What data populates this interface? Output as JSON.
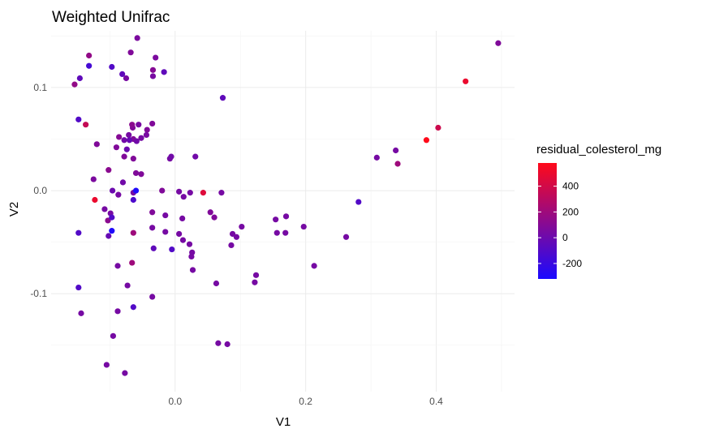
{
  "chart_data": {
    "type": "scatter",
    "title": "Weighted Unifrac",
    "xlabel": "V1",
    "ylabel": "V2",
    "xlim": [
      -0.19,
      0.52
    ],
    "ylim": [
      -0.195,
      0.155
    ],
    "x_ticks": [
      0.0,
      0.2,
      0.4
    ],
    "x_tick_labels": [
      "0.0",
      "0.2",
      "0.4"
    ],
    "y_ticks": [
      -0.1,
      0.0,
      0.1
    ],
    "y_tick_labels": [
      "-0.1",
      "0.0",
      "0.1"
    ],
    "grid": true,
    "legend": {
      "title": "residual_colesterol_mg",
      "placement": "right",
      "type": "colorbar",
      "range": [
        -320,
        580
      ],
      "ticks": [
        -200,
        0,
        200,
        400
      ],
      "tick_labels": [
        "-200",
        "0",
        "200",
        "400"
      ],
      "color_low": "#1a0aff",
      "color_high": "#ff0a1a"
    },
    "points": [
      {
        "x": -0.058,
        "y": 0.148,
        "c": 60
      },
      {
        "x": -0.132,
        "y": 0.131,
        "c": 150
      },
      {
        "x": -0.068,
        "y": 0.134,
        "c": 80
      },
      {
        "x": -0.03,
        "y": 0.129,
        "c": 60
      },
      {
        "x": -0.132,
        "y": 0.121,
        "c": -150
      },
      {
        "x": -0.097,
        "y": 0.12,
        "c": -100
      },
      {
        "x": -0.146,
        "y": 0.109,
        "c": -50
      },
      {
        "x": -0.154,
        "y": 0.103,
        "c": 150
      },
      {
        "x": -0.081,
        "y": 0.113,
        "c": -50
      },
      {
        "x": -0.075,
        "y": 0.109,
        "c": 50
      },
      {
        "x": -0.034,
        "y": 0.117,
        "c": 100
      },
      {
        "x": -0.034,
        "y": 0.111,
        "c": 50
      },
      {
        "x": -0.017,
        "y": 0.115,
        "c": -50
      },
      {
        "x": 0.073,
        "y": 0.09,
        "c": -50
      },
      {
        "x": -0.148,
        "y": 0.069,
        "c": -100
      },
      {
        "x": -0.137,
        "y": 0.064,
        "c": 350
      },
      {
        "x": -0.065,
        "y": 0.061,
        "c": 80
      },
      {
        "x": -0.056,
        "y": 0.064,
        "c": 50
      },
      {
        "x": -0.066,
        "y": 0.064,
        "c": 120
      },
      {
        "x": -0.035,
        "y": 0.065,
        "c": 80
      },
      {
        "x": -0.043,
        "y": 0.059,
        "c": 80
      },
      {
        "x": -0.044,
        "y": 0.054,
        "c": 50
      },
      {
        "x": -0.064,
        "y": 0.05,
        "c": 80
      },
      {
        "x": -0.071,
        "y": 0.054,
        "c": 40
      },
      {
        "x": -0.07,
        "y": 0.049,
        "c": -20
      },
      {
        "x": -0.059,
        "y": 0.048,
        "c": 20
      },
      {
        "x": -0.052,
        "y": 0.051,
        "c": 40
      },
      {
        "x": -0.078,
        "y": 0.049,
        "c": 20
      },
      {
        "x": -0.12,
        "y": 0.045,
        "c": 80
      },
      {
        "x": -0.086,
        "y": 0.052,
        "c": 100
      },
      {
        "x": -0.09,
        "y": 0.042,
        "c": 80
      },
      {
        "x": -0.074,
        "y": 0.04,
        "c": 0
      },
      {
        "x": -0.078,
        "y": 0.033,
        "c": 80
      },
      {
        "x": -0.064,
        "y": 0.031,
        "c": 80
      },
      {
        "x": -0.102,
        "y": 0.02,
        "c": 120
      },
      {
        "x": -0.06,
        "y": 0.017,
        "c": 80
      },
      {
        "x": -0.052,
        "y": 0.016,
        "c": 80
      },
      {
        "x": -0.008,
        "y": 0.031,
        "c": 40
      },
      {
        "x": -0.006,
        "y": 0.033,
        "c": 20
      },
      {
        "x": 0.031,
        "y": 0.033,
        "c": 20
      },
      {
        "x": -0.125,
        "y": 0.011,
        "c": 60
      },
      {
        "x": -0.08,
        "y": 0.008,
        "c": 20
      },
      {
        "x": -0.123,
        "y": -0.009,
        "c": 500
      },
      {
        "x": -0.096,
        "y": 0.0,
        "c": 0
      },
      {
        "x": -0.087,
        "y": -0.004,
        "c": 40
      },
      {
        "x": -0.064,
        "y": -0.002,
        "c": 40
      },
      {
        "x": -0.06,
        "y": 0.0,
        "c": -300
      },
      {
        "x": -0.064,
        "y": -0.009,
        "c": -120
      },
      {
        "x": -0.02,
        "y": 0.0,
        "c": 80
      },
      {
        "x": 0.006,
        "y": -0.001,
        "c": 40
      },
      {
        "x": 0.013,
        "y": -0.006,
        "c": 40
      },
      {
        "x": 0.023,
        "y": -0.002,
        "c": 40
      },
      {
        "x": 0.043,
        "y": -0.002,
        "c": 450
      },
      {
        "x": 0.071,
        "y": -0.002,
        "c": 40
      },
      {
        "x": -0.108,
        "y": -0.018,
        "c": 40
      },
      {
        "x": -0.099,
        "y": -0.022,
        "c": 40
      },
      {
        "x": -0.103,
        "y": -0.029,
        "c": 120
      },
      {
        "x": -0.097,
        "y": -0.026,
        "c": -100
      },
      {
        "x": -0.035,
        "y": -0.021,
        "c": 80
      },
      {
        "x": -0.015,
        "y": -0.024,
        "c": 40
      },
      {
        "x": 0.011,
        "y": -0.027,
        "c": 40
      },
      {
        "x": 0.054,
        "y": -0.021,
        "c": 80
      },
      {
        "x": 0.06,
        "y": -0.026,
        "c": 80
      },
      {
        "x": -0.097,
        "y": -0.039,
        "c": -300
      },
      {
        "x": -0.102,
        "y": -0.044,
        "c": -20
      },
      {
        "x": -0.148,
        "y": -0.041,
        "c": -100
      },
      {
        "x": -0.064,
        "y": -0.041,
        "c": 200
      },
      {
        "x": -0.035,
        "y": -0.036,
        "c": 40
      },
      {
        "x": -0.015,
        "y": -0.04,
        "c": 40
      },
      {
        "x": 0.006,
        "y": -0.042,
        "c": 40
      },
      {
        "x": 0.012,
        "y": -0.048,
        "c": 40
      },
      {
        "x": 0.022,
        "y": -0.052,
        "c": 40
      },
      {
        "x": -0.033,
        "y": -0.056,
        "c": -50
      },
      {
        "x": -0.005,
        "y": -0.057,
        "c": -100
      },
      {
        "x": 0.026,
        "y": -0.06,
        "c": 40
      },
      {
        "x": 0.025,
        "y": -0.064,
        "c": 40
      },
      {
        "x": 0.088,
        "y": -0.042,
        "c": 40
      },
      {
        "x": 0.094,
        "y": -0.045,
        "c": 40
      },
      {
        "x": 0.102,
        "y": -0.035,
        "c": 40
      },
      {
        "x": 0.086,
        "y": -0.053,
        "c": 40
      },
      {
        "x": 0.154,
        "y": -0.028,
        "c": 40
      },
      {
        "x": 0.156,
        "y": -0.041,
        "c": 40
      },
      {
        "x": 0.17,
        "y": -0.025,
        "c": 40
      },
      {
        "x": 0.169,
        "y": -0.041,
        "c": 40
      },
      {
        "x": 0.197,
        "y": -0.035,
        "c": 40
      },
      {
        "x": 0.262,
        "y": -0.045,
        "c": 40
      },
      {
        "x": 0.213,
        "y": -0.073,
        "c": 40
      },
      {
        "x": 0.281,
        "y": -0.011,
        "c": -100
      },
      {
        "x": 0.124,
        "y": -0.082,
        "c": 40
      },
      {
        "x": 0.122,
        "y": -0.089,
        "c": 40
      },
      {
        "x": -0.088,
        "y": -0.073,
        "c": 40
      },
      {
        "x": -0.066,
        "y": -0.07,
        "c": 200
      },
      {
        "x": 0.027,
        "y": -0.077,
        "c": 40
      },
      {
        "x": 0.063,
        "y": -0.09,
        "c": 40
      },
      {
        "x": -0.148,
        "y": -0.094,
        "c": -100
      },
      {
        "x": -0.073,
        "y": -0.092,
        "c": 40
      },
      {
        "x": -0.035,
        "y": -0.103,
        "c": 40
      },
      {
        "x": -0.144,
        "y": -0.119,
        "c": 40
      },
      {
        "x": -0.088,
        "y": -0.117,
        "c": 40
      },
      {
        "x": -0.064,
        "y": -0.113,
        "c": -100
      },
      {
        "x": -0.095,
        "y": -0.141,
        "c": 40
      },
      {
        "x": 0.066,
        "y": -0.148,
        "c": 40
      },
      {
        "x": 0.08,
        "y": -0.149,
        "c": 40
      },
      {
        "x": -0.105,
        "y": -0.169,
        "c": 40
      },
      {
        "x": -0.077,
        "y": -0.177,
        "c": 40
      },
      {
        "x": 0.309,
        "y": 0.032,
        "c": 40
      },
      {
        "x": 0.338,
        "y": 0.039,
        "c": 40
      },
      {
        "x": 0.341,
        "y": 0.026,
        "c": 200
      },
      {
        "x": 0.385,
        "y": 0.049,
        "c": 580
      },
      {
        "x": 0.403,
        "y": 0.061,
        "c": 380
      },
      {
        "x": 0.445,
        "y": 0.106,
        "c": 500
      },
      {
        "x": 0.495,
        "y": 0.143,
        "c": 80
      }
    ]
  }
}
